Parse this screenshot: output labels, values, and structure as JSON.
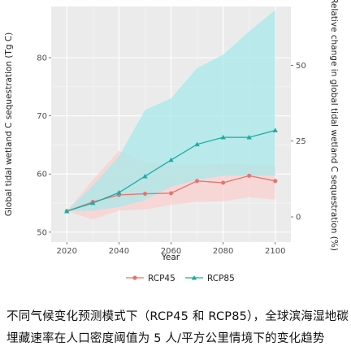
{
  "chart_data": {
    "type": "line",
    "title": "",
    "xlabel": "Year",
    "ylabel": "Global tidal wetland C sequestration (Tg C)",
    "y2label": "Relative change in global tidal wetland C sequestration (%)",
    "xlim": [
      2014,
      2106
    ],
    "ylim": [
      48.3,
      88.8
    ],
    "y2lim": [
      -8.3,
      69.4
    ],
    "xticks": [
      2020,
      2040,
      2060,
      2080,
      2100
    ],
    "yticks": [
      50,
      60,
      70,
      80
    ],
    "y2ticks": [
      0,
      25,
      50
    ],
    "grid": true,
    "legend_position": "bottom",
    "x": [
      2020,
      2030,
      2040,
      2050,
      2060,
      2070,
      2080,
      2090,
      2100
    ],
    "series": [
      {
        "name": "RCP45",
        "color": "#e8736c",
        "band_color": "#fbd0cf",
        "marker": "circle",
        "values": [
          53.6,
          55.2,
          56.4,
          56.6,
          56.7,
          58.8,
          58.5,
          59.7,
          58.8
        ],
        "lower": [
          53.6,
          52.2,
          53.7,
          53.9,
          54.7,
          55.2,
          55.3,
          56.0,
          55.6
        ],
        "upper": [
          53.6,
          59.0,
          64.0,
          62.0,
          61.5,
          61.5,
          61.8,
          61.6,
          61.3
        ]
      },
      {
        "name": "RCP85",
        "color": "#1aada7",
        "band_color": "#a8e8ea",
        "marker": "triangle",
        "values": [
          53.6,
          55.0,
          56.8,
          59.6,
          62.4,
          65.1,
          66.3,
          66.3,
          67.5
        ],
        "lower": [
          53.6,
          53.7,
          54.3,
          55.5,
          57.8,
          59.0,
          59.7,
          59.7,
          59.7
        ],
        "upper": [
          53.6,
          58.0,
          63.0,
          71.0,
          73.0,
          78.2,
          80.5,
          84.5,
          88.2
        ]
      }
    ]
  },
  "caption": {
    "line1": "不同气候变化预测模式下（RCP45 和 RCP85），全球滨海湿地碳",
    "line2": "埋藏速率在人口密度阈值为 5 人/平方公里情境下的变化趋势"
  }
}
